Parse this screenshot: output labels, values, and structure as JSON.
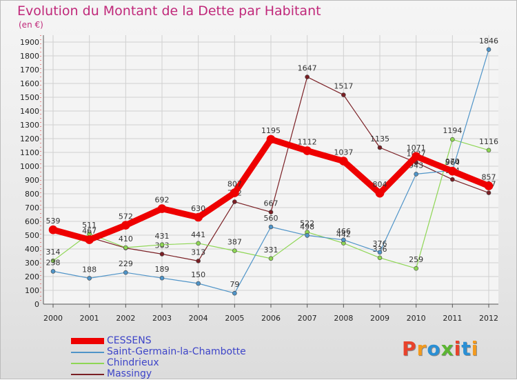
{
  "header": {
    "title": "Evolution du Montant de la Dette par Habitant",
    "unit": "(en €)"
  },
  "logo": {
    "text": "Proxiti",
    "colors": [
      "#e8422b",
      "#f39a1e",
      "#2a8fd4",
      "#5bb532",
      "#e8422b",
      "#2a8fd4",
      "#f39a1e"
    ]
  },
  "chart_data": {
    "type": "line",
    "x": [
      "2000",
      "2001",
      "2002",
      "2003",
      "2004",
      "2005",
      "2006",
      "2007",
      "2008",
      "2009",
      "2010",
      "2011",
      "2012"
    ],
    "ylim": [
      0,
      1900
    ],
    "yticks": [
      0,
      100,
      200,
      300,
      400,
      500,
      600,
      700,
      800,
      900,
      1000,
      1100,
      1200,
      1300,
      1400,
      1500,
      1600,
      1700,
      1800,
      1900
    ],
    "grid": true,
    "legend": "bottom-left",
    "series": [
      {
        "name": "Massingy",
        "color": "#7a1f24",
        "stroke": 1.2,
        "values": [
          535,
          484,
          407,
          363,
          313,
          742,
          667,
          1647,
          1517,
          1135,
          1027,
          904,
          807
        ],
        "labels": [
          "",
          "",
          "",
          "363",
          "313",
          "742",
          "667",
          "1647",
          "1517",
          "1135",
          "1027",
          "904",
          "807"
        ]
      },
      {
        "name": "Chindrieux",
        "color": "#8ed654",
        "stroke": 1.2,
        "values": [
          314,
          511,
          410,
          431,
          441,
          387,
          331,
          522,
          442,
          336,
          259,
          1194,
          1116
        ],
        "labels": [
          "314",
          "511",
          "410",
          "431",
          "441",
          "387",
          "331",
          "522",
          "442",
          "336",
          "259",
          "1194",
          "1116"
        ]
      },
      {
        "name": "Saint-Germain-la-Chambotte",
        "color": "#4f94c8",
        "stroke": 1.2,
        "values": [
          238,
          188,
          229,
          189,
          150,
          79,
          560,
          498,
          466,
          376,
          943,
          970,
          1846
        ],
        "labels": [
          "238",
          "188",
          "229",
          "189",
          "150",
          "79",
          "560",
          "498",
          "466",
          "376",
          "943",
          "970",
          "1846"
        ]
      },
      {
        "name": "CESSENS",
        "color": "#ee0000",
        "stroke": 9,
        "values": [
          539,
          467,
          572,
          692,
          630,
          807,
          1195,
          1112,
          1037,
          804,
          1071,
          964,
          857
        ],
        "labels": [
          "539",
          "467",
          "572",
          "692",
          "630",
          "807",
          "1195",
          "1112",
          "1037",
          "804",
          "1071",
          "964",
          "857"
        ]
      }
    ]
  },
  "legend": {
    "entries": [
      {
        "name": "CESSENS",
        "color": "#ee0000",
        "thick": true
      },
      {
        "name": "Saint-Germain-la-Chambotte",
        "color": "#4f94c8",
        "thick": false
      },
      {
        "name": "Chindrieux",
        "color": "#8ed654",
        "thick": false
      },
      {
        "name": "Massingy",
        "color": "#7a1f24",
        "thick": false
      }
    ]
  }
}
